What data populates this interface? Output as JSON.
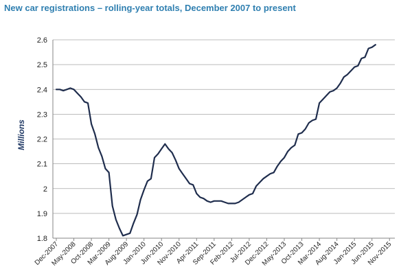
{
  "chart_data": {
    "type": "line",
    "title": "New car registrations – rolling-year totals, December 2007 to present",
    "ylabel": "Millions",
    "xlabel": "",
    "ylim": [
      1.8,
      2.6
    ],
    "yticks": [
      "1.8",
      "1.9",
      "2",
      "2.1",
      "2.2",
      "2.3",
      "2.4",
      "2.5",
      "2.6"
    ],
    "xticks": [
      "Dec-2007",
      "May-2008",
      "Oct-2008",
      "Mar-2009",
      "Aug-2009",
      "Jan-2010",
      "Jun-2010",
      "Nov-2010",
      "Apr-2011",
      "Sep-2011",
      "Feb-2012",
      "Jul-2012",
      "Dec-2012",
      "May-2013",
      "Oct-2013",
      "Mar-2014",
      "Aug-2014",
      "Jan-2015",
      "Jun-2015",
      "Nov-2015"
    ],
    "grid": true,
    "series": [
      {
        "color": "#1f2d4d",
        "start": "Dec-2007",
        "values": [
          2.4,
          2.4,
          2.395,
          2.4,
          2.405,
          2.4,
          2.385,
          2.37,
          2.35,
          2.345,
          2.26,
          2.22,
          2.165,
          2.13,
          2.08,
          2.065,
          1.93,
          1.875,
          1.84,
          1.81,
          1.815,
          1.82,
          1.86,
          1.895,
          1.955,
          1.995,
          2.03,
          2.04,
          2.125,
          2.14,
          2.16,
          2.18,
          2.16,
          2.145,
          2.115,
          2.08,
          2.06,
          2.04,
          2.02,
          2.015,
          1.98,
          1.965,
          1.96,
          1.95,
          1.945,
          1.95,
          1.95,
          1.95,
          1.945,
          1.94,
          1.94,
          1.94,
          1.945,
          1.955,
          1.965,
          1.975,
          1.98,
          2.01,
          2.025,
          2.04,
          2.05,
          2.06,
          2.065,
          2.09,
          2.11,
          2.125,
          2.15,
          2.165,
          2.175,
          2.22,
          2.225,
          2.24,
          2.265,
          2.275,
          2.28,
          2.345,
          2.36,
          2.375,
          2.39,
          2.395,
          2.405,
          2.425,
          2.45,
          2.46,
          2.475,
          2.49,
          2.495,
          2.525,
          2.53,
          2.565,
          2.57,
          2.58
        ]
      }
    ]
  }
}
